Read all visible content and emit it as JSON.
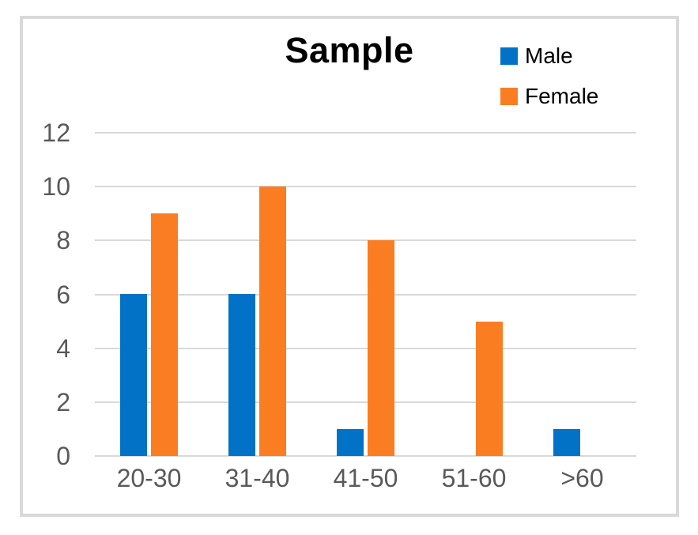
{
  "chart_data": {
    "type": "bar",
    "title": "Sample",
    "categories": [
      "20-30",
      "31-40",
      "41-50",
      "51-60",
      ">60"
    ],
    "series": [
      {
        "name": "Male",
        "color": "#0272C6",
        "values": [
          6,
          6,
          1,
          0,
          1
        ]
      },
      {
        "name": "Female",
        "color": "#FB7D21",
        "values": [
          9,
          10,
          8,
          5,
          0
        ]
      }
    ],
    "y_ticks": [
      0,
      2,
      4,
      6,
      8,
      10,
      12
    ],
    "ylim": [
      0,
      12
    ],
    "xlabel": "",
    "ylabel": "",
    "grid": true,
    "legend_position": "top-right",
    "colors": {
      "tick_label": "#595959",
      "gridline": "#d9d9d9",
      "title_text": "#000000",
      "legend_text": "#000000",
      "frame_border": "#d9d9d9",
      "background": "#ffffff"
    }
  }
}
